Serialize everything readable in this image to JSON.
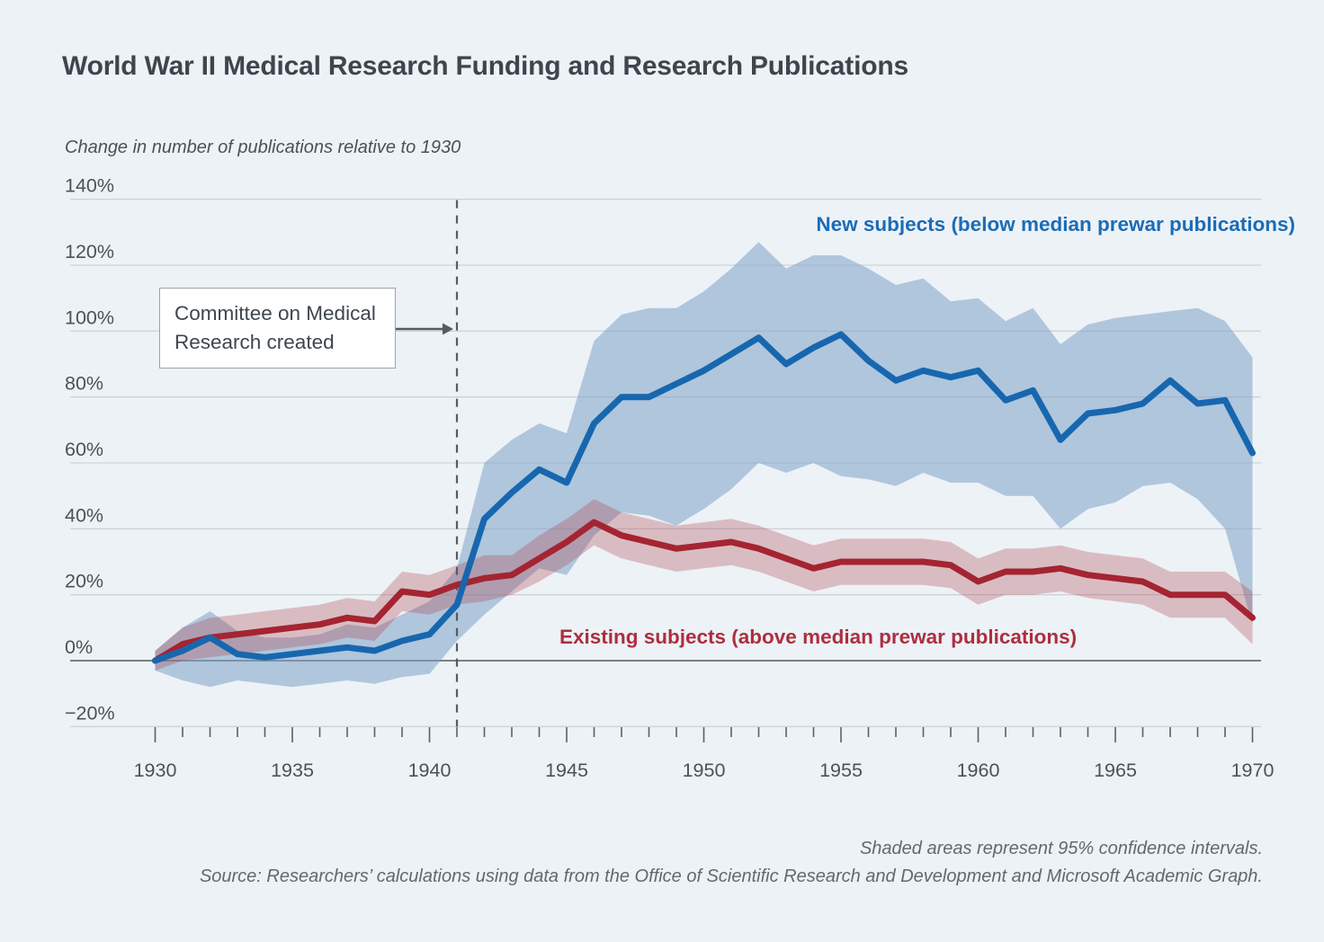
{
  "header": {
    "title": "World War II Medical Research Funding and Research Publications",
    "axis_note": "Change in number of publications relative to 1930"
  },
  "annotation": {
    "text": "Committee on Medical Research created"
  },
  "footer": {
    "note": "Shaded areas represent 95% confidence intervals.",
    "source": "Source: Researchers’ calculations using data from the Office of Scientific Research and Development and Microsoft Academic Graph."
  },
  "colors": {
    "background": "#edf2f7",
    "grid": "#c8ccd1",
    "zero_line": "#6a7076",
    "axis_text": "#4b5258",
    "tick": "#5a6065",
    "event_line": "#565c61",
    "annotation_arrow": "#565c61",
    "new_subjects_blue": "#1767af",
    "existing_subjects_red": "#a42432"
  },
  "chart_data": {
    "type": "line",
    "title": "World War II Medical Research Funding and Research Publications",
    "ylabel": "Change in number of publications relative to 1930",
    "xlabel": "",
    "ylim": [
      -20,
      140
    ],
    "xlim": [
      1930,
      1970
    ],
    "grid": true,
    "legend_position": "inline-labels",
    "yticks": [
      140,
      120,
      100,
      80,
      60,
      40,
      20,
      0,
      -20
    ],
    "ytick_labels": [
      "140%",
      "120%",
      "100%",
      "80%",
      "60%",
      "40%",
      "20%",
      "0%",
      "−20%"
    ],
    "xticks_labeled": [
      1930,
      1935,
      1940,
      1945,
      1950,
      1955,
      1960,
      1965,
      1970
    ],
    "x": [
      1930,
      1931,
      1932,
      1933,
      1934,
      1935,
      1936,
      1937,
      1938,
      1939,
      1940,
      1941,
      1942,
      1943,
      1944,
      1945,
      1946,
      1947,
      1948,
      1949,
      1950,
      1951,
      1952,
      1953,
      1954,
      1955,
      1956,
      1957,
      1958,
      1959,
      1960,
      1961,
      1962,
      1963,
      1964,
      1965,
      1966,
      1967,
      1968,
      1969,
      1970
    ],
    "event_line": {
      "x": 1941,
      "style": "dashed",
      "label": "Committee on Medical Research created"
    },
    "note": "Shaded areas represent 95% confidence intervals.",
    "series": [
      {
        "name": "New subjects (below median prewar publications)",
        "color": "#1767af",
        "band_color": "rgba(126,163,199,0.55)",
        "values": [
          0,
          3,
          7,
          2,
          1,
          2,
          3,
          4,
          3,
          6,
          8,
          17,
          43,
          51,
          58,
          54,
          72,
          80,
          80,
          84,
          88,
          93,
          98,
          90,
          95,
          99,
          91,
          85,
          88,
          86,
          88,
          79,
          82,
          67,
          75,
          76,
          78,
          85,
          78,
          79,
          63
        ],
        "band_lower": [
          -3,
          -6,
          -8,
          -6,
          -7,
          -8,
          -7,
          -6,
          -7,
          -5,
          -4,
          6,
          14,
          21,
          28,
          26,
          38,
          45,
          44,
          41,
          46,
          52,
          60,
          57,
          60,
          56,
          55,
          53,
          57,
          54,
          54,
          50,
          50,
          40,
          46,
          48,
          53,
          54,
          49,
          40,
          11
        ],
        "band_upper": [
          3,
          10,
          15,
          9,
          7,
          7,
          8,
          11,
          10,
          14,
          18,
          28,
          60,
          67,
          72,
          69,
          97,
          105,
          107,
          107,
          112,
          119,
          127,
          119,
          123,
          123,
          119,
          114,
          116,
          109,
          110,
          103,
          107,
          96,
          102,
          104,
          105,
          106,
          107,
          103,
          92
        ]
      },
      {
        "name": "Existing subjects (above median prewar publications)",
        "color": "#a42432",
        "band_color": "rgba(171,62,73,0.30)",
        "values": [
          0,
          5,
          7,
          8,
          9,
          10,
          11,
          13,
          12,
          21,
          20,
          23,
          25,
          26,
          31,
          36,
          42,
          38,
          36,
          34,
          35,
          36,
          34,
          31,
          28,
          30,
          30,
          30,
          30,
          29,
          24,
          27,
          27,
          28,
          26,
          25,
          24,
          20,
          20,
          20,
          13
        ],
        "band_lower": [
          -3,
          0,
          1,
          2,
          3,
          4,
          5,
          7,
          6,
          15,
          14,
          17,
          18,
          20,
          24,
          29,
          35,
          31,
          29,
          27,
          28,
          29,
          27,
          24,
          21,
          23,
          23,
          23,
          23,
          22,
          17,
          20,
          20,
          21,
          19,
          18,
          17,
          13,
          13,
          13,
          5
        ],
        "band_upper": [
          3,
          10,
          13,
          14,
          15,
          16,
          17,
          19,
          18,
          27,
          26,
          29,
          32,
          32,
          38,
          43,
          49,
          45,
          43,
          41,
          42,
          43,
          41,
          38,
          35,
          37,
          37,
          37,
          37,
          36,
          31,
          34,
          34,
          35,
          33,
          32,
          31,
          27,
          27,
          27,
          21
        ]
      }
    ]
  }
}
